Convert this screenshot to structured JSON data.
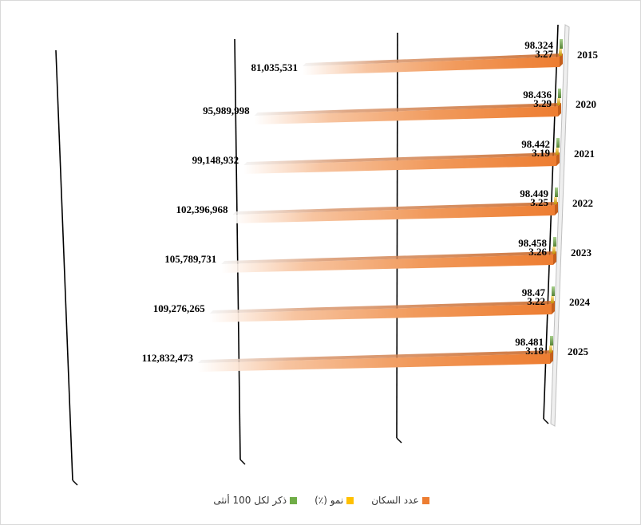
{
  "chart_data": {
    "type": "bar",
    "orientation": "horizontal",
    "three_d": true,
    "categories": [
      "2015",
      "2020",
      "2021",
      "2022",
      "2023",
      "2024",
      "2025"
    ],
    "series": [
      {
        "name": "عدد السكان",
        "color": "#ed7d31",
        "values": [
          81035531,
          95989998,
          99148932,
          102396968,
          105789731,
          109276265,
          112832473
        ],
        "labels": [
          "81,035,531",
          "95,989,998",
          "99,148,932",
          "102,396,968",
          "105,789,731",
          "109,276,265",
          "112,832,473"
        ]
      },
      {
        "name": "نمو (٪)",
        "color": "#ffc000",
        "values": [
          3.27,
          3.29,
          3.19,
          3.25,
          3.26,
          3.22,
          3.18
        ],
        "labels": [
          "3.27",
          "3.29",
          "3.19",
          "3.25",
          "3.26",
          "3.22",
          "3.18"
        ]
      },
      {
        "name": "ذكر لكل 100 أنثى",
        "color": "#70ad47",
        "values": [
          98.324,
          98.436,
          98.442,
          98.449,
          98.458,
          98.47,
          98.481
        ],
        "labels": [
          "98.324",
          "98.436",
          "98.442",
          "98.449",
          "98.458",
          "98.47",
          "98.481"
        ]
      }
    ],
    "xlim": [
      0,
      120000000
    ],
    "gridlines": true,
    "legend_position": "bottom",
    "reversed_axis": true
  }
}
